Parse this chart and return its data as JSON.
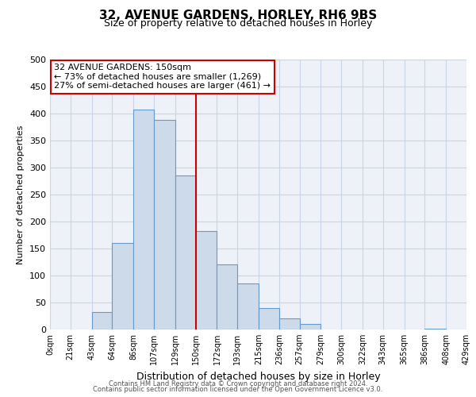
{
  "title": "32, AVENUE GARDENS, HORLEY, RH6 9BS",
  "subtitle": "Size of property relative to detached houses in Horley",
  "xlabel": "Distribution of detached houses by size in Horley",
  "ylabel": "Number of detached properties",
  "bin_edges": [
    0,
    21,
    43,
    64,
    86,
    107,
    129,
    150,
    172,
    193,
    215,
    236,
    257,
    279,
    300,
    322,
    343,
    365,
    386,
    408,
    429
  ],
  "bin_counts": [
    0,
    0,
    33,
    160,
    407,
    388,
    285,
    183,
    120,
    86,
    40,
    21,
    11,
    0,
    0,
    0,
    0,
    0,
    1,
    0
  ],
  "bar_facecolor": "#ccdaea",
  "bar_edgecolor": "#6699cc",
  "vline_x": 150,
  "vline_color": "#cc0000",
  "annotation_line1": "32 AVENUE GARDENS: 150sqm",
  "annotation_line2": "← 73% of detached houses are smaller (1,269)",
  "annotation_line3": "27% of semi-detached houses are larger (461) →",
  "box_edgecolor": "#cc0000",
  "grid_color": "#c8d4e8",
  "background_color": "#eef2f8",
  "ylim": [
    0,
    500
  ],
  "yticks": [
    0,
    50,
    100,
    150,
    200,
    250,
    300,
    350,
    400,
    450,
    500
  ],
  "tick_labels": [
    "0sqm",
    "21sqm",
    "43sqm",
    "64sqm",
    "86sqm",
    "107sqm",
    "129sqm",
    "150sqm",
    "172sqm",
    "193sqm",
    "215sqm",
    "236sqm",
    "257sqm",
    "279sqm",
    "300sqm",
    "322sqm",
    "343sqm",
    "365sqm",
    "386sqm",
    "408sqm",
    "429sqm"
  ],
  "footer_line1": "Contains HM Land Registry data © Crown copyright and database right 2024.",
  "footer_line2": "Contains public sector information licensed under the Open Government Licence v3.0.",
  "title_fontsize": 11,
  "subtitle_fontsize": 9,
  "ylabel_fontsize": 8,
  "xlabel_fontsize": 9,
  "ytick_fontsize": 8,
  "xtick_fontsize": 7,
  "ann_fontsize": 8,
  "footer_fontsize": 6
}
